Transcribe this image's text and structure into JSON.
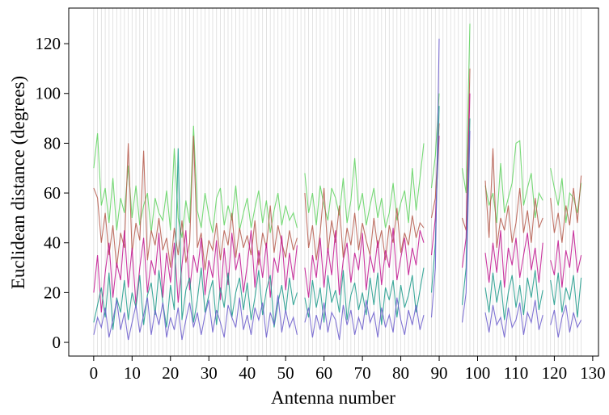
{
  "chart_data": {
    "type": "line",
    "x_label": "Antenna number",
    "y_label": "Euclidean distance (degrees)",
    "x": [
      0,
      1,
      2,
      3,
      4,
      5,
      6,
      7,
      8,
      9,
      10,
      11,
      12,
      13,
      14,
      15,
      16,
      17,
      18,
      19,
      20,
      21,
      22,
      23,
      24,
      25,
      26,
      27,
      28,
      29,
      30,
      31,
      32,
      33,
      34,
      35,
      36,
      37,
      38,
      39,
      40,
      41,
      42,
      43,
      44,
      45,
      46,
      47,
      48,
      49,
      50,
      51,
      52,
      53,
      54,
      55,
      56,
      57,
      58,
      59,
      60,
      61,
      62,
      63,
      64,
      65,
      66,
      67,
      68,
      69,
      70,
      71,
      72,
      73,
      74,
      75,
      76,
      77,
      78,
      79,
      80,
      81,
      82,
      83,
      84,
      85,
      86,
      87,
      88,
      89,
      90,
      91,
      92,
      93,
      94,
      95,
      96,
      97,
      98,
      99,
      100,
      101,
      102,
      103,
      104,
      105,
      106,
      107,
      108,
      109,
      110,
      111,
      112,
      113,
      114,
      115,
      116,
      117,
      118,
      119,
      120,
      121,
      122,
      123,
      124,
      125,
      126,
      127
    ],
    "series": [
      {
        "color": "#5fd35f",
        "values": [
          70,
          84,
          55,
          62,
          48,
          66,
          45,
          58,
          52,
          71,
          50,
          63,
          47,
          55,
          60,
          44,
          58,
          52,
          49,
          61,
          45,
          78,
          50,
          42,
          57,
          48,
          87,
          53,
          46,
          60,
          51,
          44,
          58,
          62,
          47,
          55,
          49,
          63,
          45,
          52,
          58,
          46,
          54,
          61,
          48,
          57,
          44,
          53,
          60,
          47,
          55,
          49,
          52,
          46,
          null,
          68,
          52,
          60,
          47,
          63,
          55,
          49,
          62,
          58,
          51,
          66,
          48,
          57,
          74,
          53,
          60,
          47,
          55,
          62,
          50,
          58,
          46,
          52,
          64,
          49,
          56,
          61,
          48,
          70,
          53,
          66,
          80,
          null,
          62,
          75,
          100,
          null,
          null,
          null,
          null,
          null,
          70,
          60,
          128,
          null,
          null,
          null,
          63,
          55,
          60,
          48,
          72,
          52,
          58,
          64,
          80,
          81,
          55,
          62,
          68,
          50,
          60,
          57,
          null,
          70,
          62,
          55,
          66,
          48,
          60,
          58,
          52,
          64
        ]
      },
      {
        "color": "#b5584a",
        "values": [
          62,
          58,
          40,
          52,
          35,
          47,
          30,
          44,
          38,
          80,
          36,
          48,
          41,
          77,
          33,
          45,
          39,
          50,
          37,
          42,
          30,
          46,
          35,
          49,
          32,
          40,
          83,
          38,
          44,
          29,
          41,
          37,
          48,
          33,
          45,
          39,
          52,
          34,
          46,
          38,
          43,
          35,
          49,
          31,
          44,
          38,
          55,
          36,
          47,
          40,
          34,
          45,
          37,
          42,
          null,
          60,
          38,
          47,
          33,
          44,
          62,
          36,
          49,
          40,
          55,
          34,
          46,
          39,
          52,
          37,
          48,
          41,
          35,
          50,
          38,
          45,
          33,
          47,
          40,
          54,
          36,
          44,
          39,
          51,
          42,
          48,
          46,
          null,
          50,
          58,
          88,
          null,
          null,
          null,
          null,
          null,
          50,
          45,
          110,
          null,
          null,
          null,
          65,
          42,
          78,
          38,
          50,
          45,
          55,
          40,
          48,
          62,
          44,
          53,
          40,
          58,
          46,
          50,
          null,
          58,
          44,
          52,
          40,
          55,
          47,
          62,
          48,
          67
        ]
      },
      {
        "color": "#c2148f",
        "values": [
          20,
          35,
          12,
          28,
          40,
          18,
          32,
          25,
          45,
          22,
          38,
          15,
          30,
          42,
          20,
          33,
          27,
          44,
          18,
          36,
          24,
          40,
          16,
          31,
          45,
          21,
          35,
          28,
          42,
          19,
          33,
          26,
          41,
          17,
          38,
          23,
          44,
          29,
          36,
          20,
          31,
          45,
          22,
          37,
          26,
          40,
          18,
          34,
          28,
          43,
          21,
          36,
          25,
          39,
          null,
          30,
          18,
          35,
          26,
          42,
          22,
          38,
          27,
          45,
          19,
          33,
          40,
          24,
          36,
          29,
          44,
          21,
          35,
          28,
          41,
          23,
          37,
          30,
          46,
          25,
          34,
          42,
          27,
          38,
          31,
          45,
          40,
          null,
          35,
          50,
          83,
          null,
          null,
          null,
          null,
          null,
          30,
          42,
          100,
          null,
          null,
          null,
          36,
          24,
          40,
          28,
          45,
          22,
          38,
          31,
          42,
          26,
          35,
          44,
          29,
          38,
          24,
          40,
          null,
          33,
          27,
          41,
          22,
          37,
          30,
          45,
          28,
          35
        ]
      },
      {
        "color": "#1a9a8a",
        "values": [
          8,
          15,
          22,
          10,
          28,
          5,
          18,
          12,
          25,
          9,
          20,
          14,
          27,
          7,
          19,
          24,
          11,
          29,
          16,
          6,
          23,
          13,
          78,
          9,
          21,
          26,
          8,
          17,
          30,
          12,
          19,
          25,
          7,
          22,
          14,
          28,
          10,
          20,
          26,
          13,
          24,
          9,
          18,
          29,
          11,
          21,
          27,
          6,
          16,
          23,
          12,
          26,
          15,
          20,
          null,
          18,
          10,
          25,
          14,
          22,
          8,
          27,
          16,
          21,
          12,
          29,
          9,
          19,
          24,
          13,
          20,
          11,
          26,
          15,
          28,
          7,
          22,
          17,
          25,
          10,
          23,
          14,
          19,
          27,
          12,
          21,
          30,
          null,
          20,
          40,
          95,
          null,
          null,
          null,
          null,
          null,
          15,
          30,
          90,
          null,
          null,
          null,
          22,
          12,
          28,
          16,
          25,
          9,
          20,
          27,
          14,
          23,
          11,
          26,
          18,
          29,
          13,
          21,
          null,
          25,
          15,
          28,
          12,
          22,
          17,
          27,
          10,
          26
        ]
      },
      {
        "color": "#6a5acd",
        "values": [
          3,
          10,
          6,
          14,
          2,
          9,
          17,
          5,
          12,
          1,
          8,
          15,
          4,
          11,
          18,
          3,
          13,
          7,
          16,
          2,
          10,
          5,
          14,
          1,
          9,
          16,
          6,
          12,
          3,
          11,
          17,
          4,
          13,
          8,
          2,
          15,
          10,
          6,
          18,
          5,
          11,
          3,
          14,
          9,
          16,
          2,
          12,
          7,
          19,
          4,
          13,
          6,
          10,
          3,
          null,
          8,
          14,
          2,
          11,
          5,
          16,
          4,
          12,
          9,
          1,
          15,
          7,
          13,
          3,
          10,
          5,
          17,
          8,
          12,
          2,
          14,
          6,
          11,
          4,
          18,
          9,
          3,
          13,
          7,
          15,
          5,
          11,
          null,
          10,
          30,
          122,
          null,
          null,
          null,
          null,
          null,
          8,
          20,
          85,
          null,
          null,
          null,
          12,
          4,
          15,
          7,
          10,
          2,
          14,
          6,
          9,
          16,
          3,
          12,
          8,
          17,
          5,
          11,
          null,
          7,
          13,
          2,
          10,
          15,
          4,
          12,
          6,
          9
        ]
      }
    ],
    "xlim": [
      -6.5,
      131.5
    ],
    "ylim": [
      -5.5,
      134.3
    ],
    "xticks": [
      0,
      10,
      20,
      30,
      40,
      50,
      60,
      70,
      80,
      90,
      100,
      110,
      120,
      130
    ],
    "yticks": [
      0,
      20,
      40,
      60,
      80,
      100,
      120
    ],
    "grid": true
  }
}
